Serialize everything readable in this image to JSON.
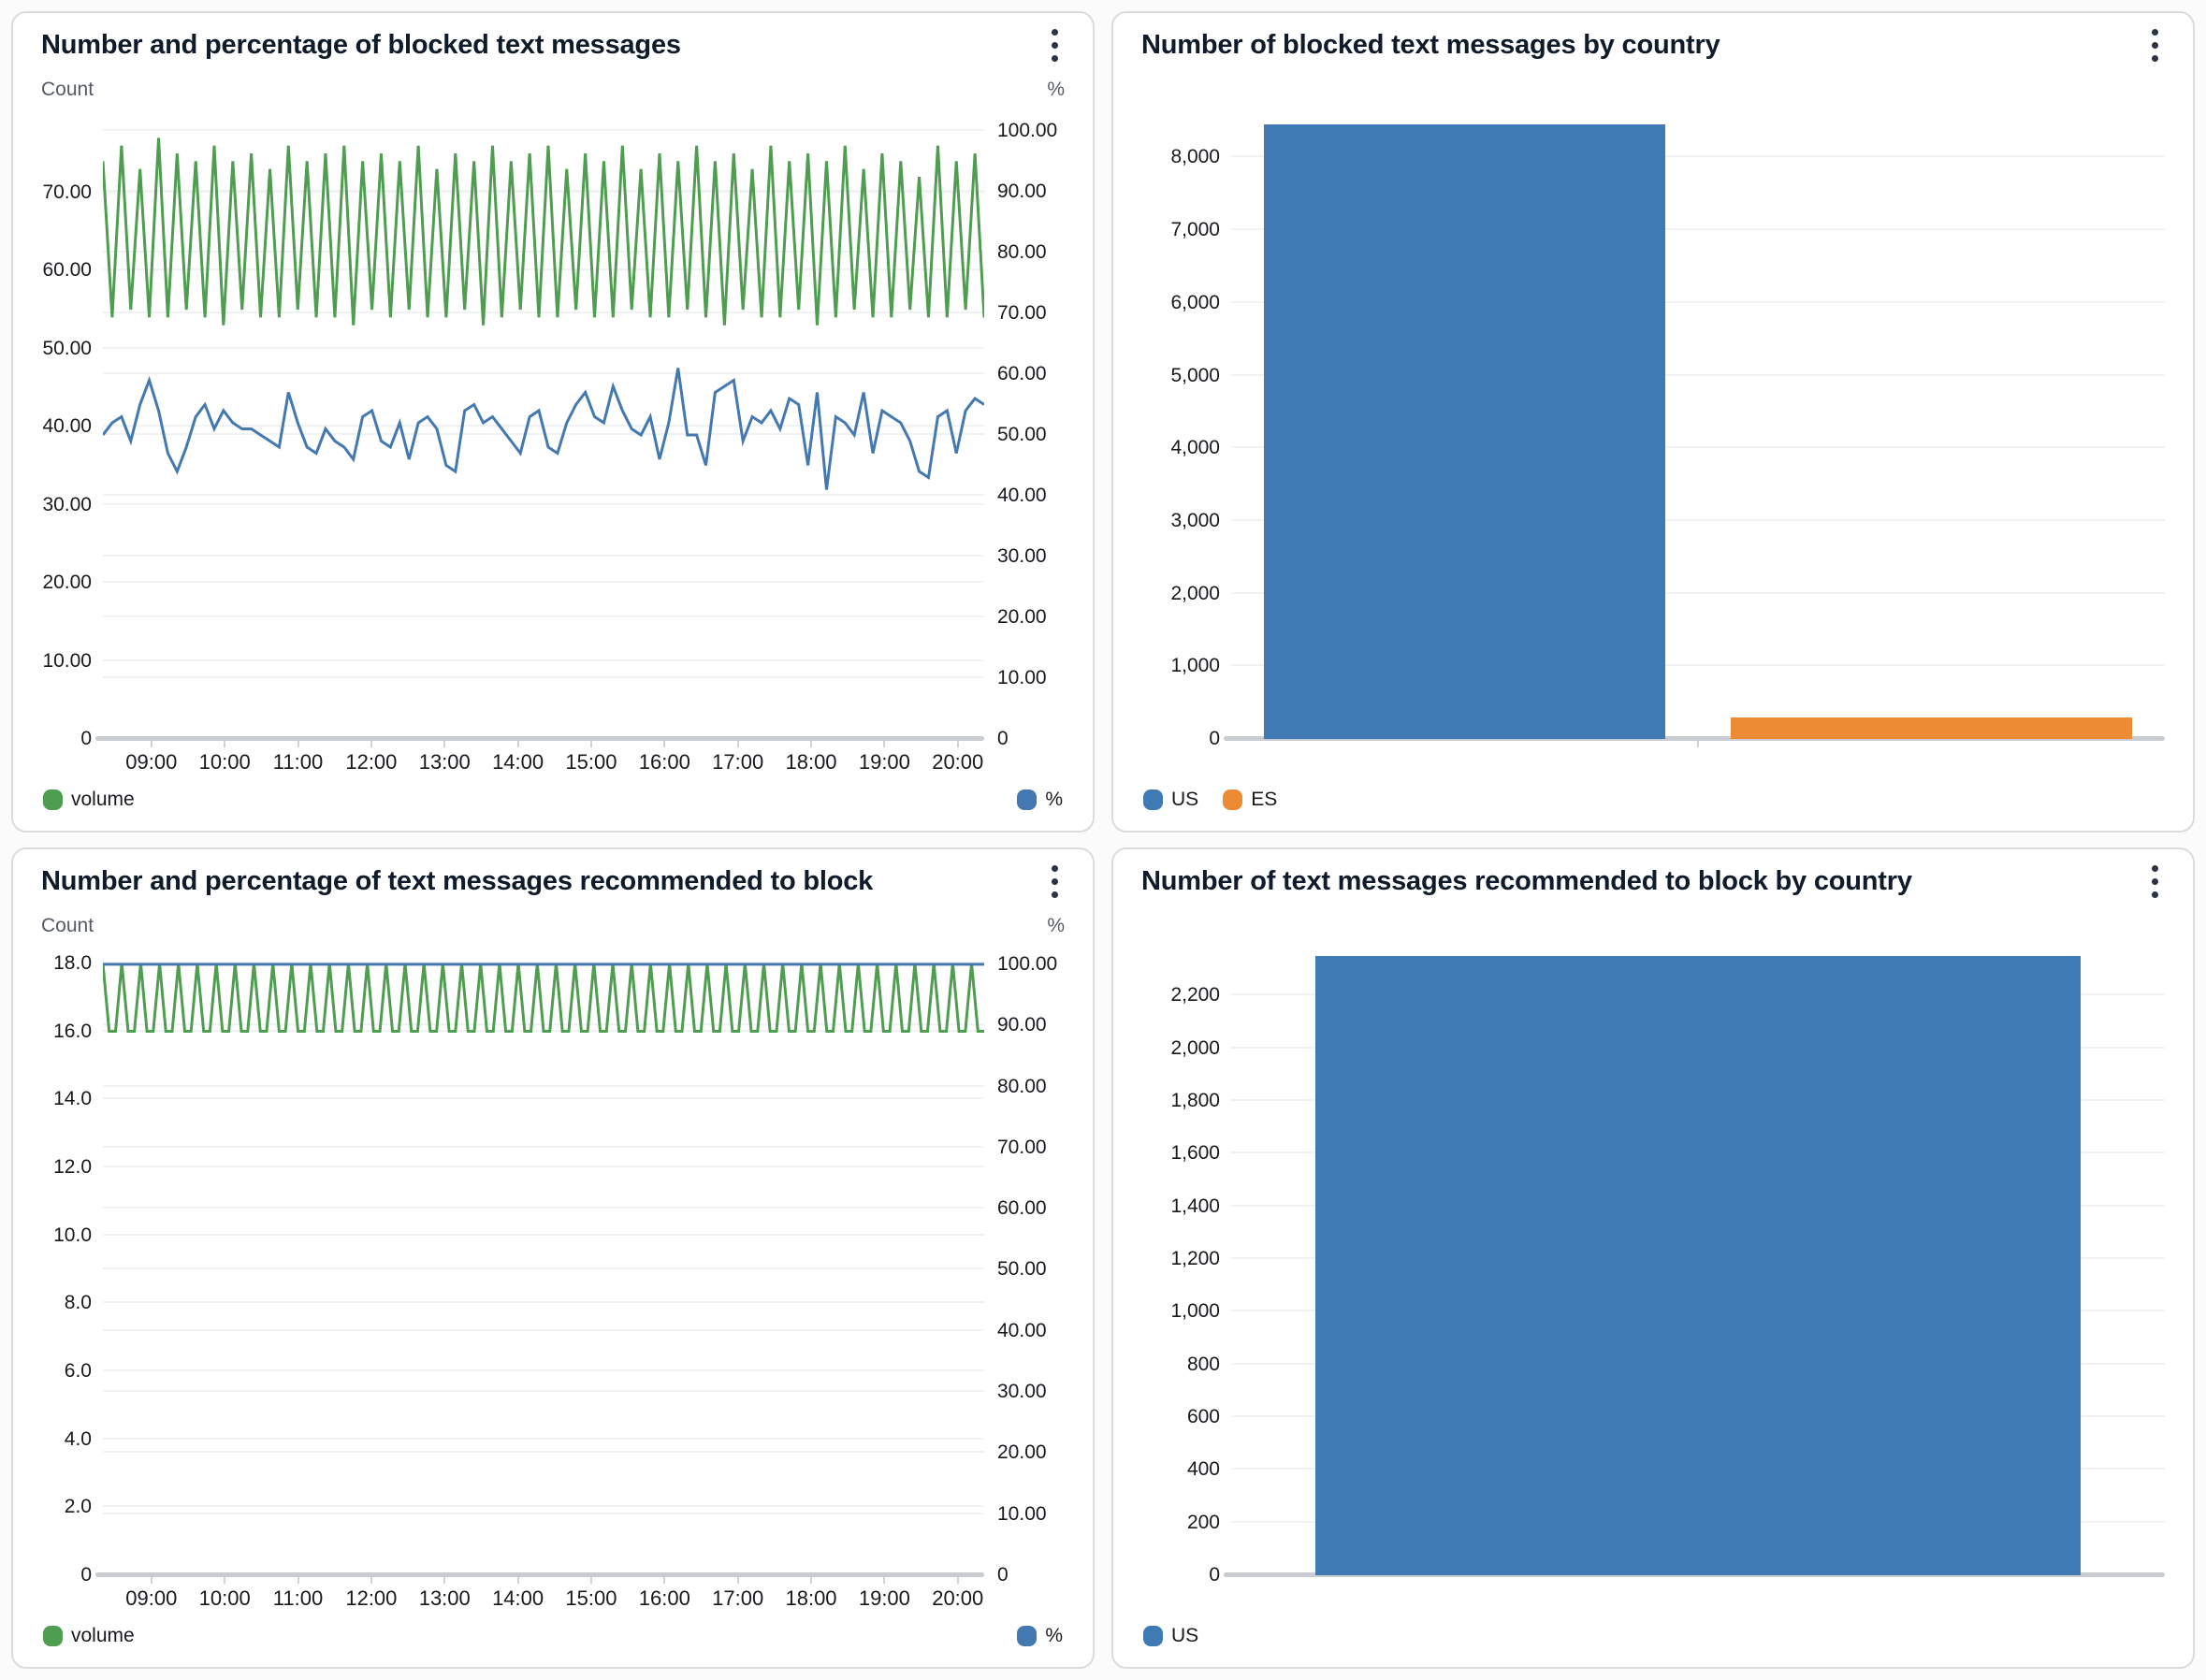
{
  "chart_data": [
    {
      "type": "line",
      "title": "Number and percentage of blocked text messages",
      "left_axis": {
        "label": "Count",
        "ylim": [
          0,
          81
        ],
        "ticks": [
          70,
          60,
          50,
          40,
          30,
          20,
          10,
          0
        ],
        "tick_labels": [
          "70.00",
          "60.00",
          "50.00",
          "40.00",
          "30.00",
          "20.00",
          "10.00",
          "0"
        ]
      },
      "right_axis": {
        "label": "%",
        "ylim": [
          0,
          104
        ],
        "ticks": [
          100,
          90,
          80,
          70,
          60,
          50,
          40,
          30,
          20,
          10,
          0
        ],
        "tick_labels": [
          "100.00",
          "90.00",
          "80.00",
          "70.00",
          "60.00",
          "50.00",
          "40.00",
          "30.00",
          "20.00",
          "10.00",
          "0"
        ]
      },
      "x_ticks": [
        "09:00",
        "10:00",
        "11:00",
        "12:00",
        "13:00",
        "14:00",
        "15:00",
        "16:00",
        "17:00",
        "18:00",
        "19:00",
        "20:00"
      ],
      "grid": true,
      "legend_position": "bottom",
      "series": [
        {
          "name": "volume",
          "axis": "left",
          "color": "#4f9d50",
          "values": [
            74,
            54,
            76,
            55,
            73,
            54,
            77,
            54,
            75,
            55,
            74,
            54,
            76,
            53,
            74,
            55,
            75,
            54,
            73,
            54,
            76,
            55,
            74,
            54,
            75,
            54,
            76,
            53,
            74,
            55,
            75,
            54,
            74,
            55,
            76,
            54,
            73,
            54,
            75,
            55,
            74,
            53,
            76,
            54,
            74,
            55,
            75,
            54,
            76,
            54,
            73,
            55,
            75,
            54,
            74,
            54,
            76,
            55,
            73,
            54,
            75,
            54,
            74,
            55,
            76,
            54,
            74,
            53,
            75,
            55,
            73,
            54,
            76,
            54,
            74,
            55,
            75,
            53,
            74,
            54,
            76,
            55,
            73,
            54,
            75,
            54,
            74,
            55,
            72,
            54,
            76,
            54,
            74,
            55,
            75,
            54
          ]
        },
        {
          "name": "%",
          "axis": "right",
          "color": "#4478b1",
          "values": [
            50,
            52,
            53,
            49,
            55,
            59,
            54,
            47,
            44,
            48,
            53,
            55,
            51,
            54,
            52,
            51,
            51,
            50,
            49,
            48,
            57,
            52,
            48,
            47,
            51,
            49,
            48,
            46,
            53,
            54,
            49,
            48,
            52,
            46,
            52,
            53,
            51,
            45,
            44,
            54,
            55,
            52,
            53,
            51,
            49,
            47,
            53,
            54,
            48,
            47,
            52,
            55,
            57,
            53,
            52,
            58,
            54,
            51,
            50,
            53,
            46,
            52,
            61,
            50,
            50,
            45,
            57,
            58,
            59,
            49,
            53,
            52,
            54,
            51,
            56,
            55,
            45,
            57,
            41,
            53,
            52,
            50,
            57,
            47,
            54,
            53,
            52,
            49,
            44,
            43,
            53,
            54,
            47,
            54,
            56,
            55
          ]
        }
      ]
    },
    {
      "type": "bar",
      "title": "Number of blocked text messages by country",
      "y_axis": {
        "ylim": [
          0,
          8700
        ],
        "ticks": [
          8000,
          7000,
          6000,
          5000,
          4000,
          3000,
          2000,
          1000,
          0
        ],
        "tick_labels": [
          "8,000",
          "7,000",
          "6,000",
          "5,000",
          "4,000",
          "3,000",
          "2,000",
          "1,000",
          "0"
        ]
      },
      "categories": [
        "US",
        "ES"
      ],
      "values": [
        8450,
        290
      ],
      "colors": [
        "#3f7ab5",
        "#ec8b33"
      ],
      "bar_width_frac": 0.86,
      "grid": true,
      "legend_position": "bottom-left"
    },
    {
      "type": "line",
      "title": "Number and percentage of text messages recommended to block",
      "left_axis": {
        "label": "Count",
        "ylim": [
          0,
          18.6
        ],
        "ticks": [
          18,
          16,
          14,
          12,
          10,
          8,
          6,
          4,
          2,
          0
        ],
        "tick_labels": [
          "18.0",
          "16.0",
          "14.0",
          "12.0",
          "10.0",
          "8.0",
          "6.0",
          "4.0",
          "2.0",
          "0"
        ]
      },
      "right_axis": {
        "label": "%",
        "ylim": [
          0,
          103.5
        ],
        "ticks": [
          100,
          90,
          80,
          70,
          60,
          50,
          40,
          30,
          20,
          10,
          0
        ],
        "tick_labels": [
          "100.00",
          "90.00",
          "80.00",
          "70.00",
          "60.00",
          "50.00",
          "40.00",
          "30.00",
          "20.00",
          "10.00",
          "0"
        ]
      },
      "x_ticks": [
        "09:00",
        "10:00",
        "11:00",
        "12:00",
        "13:00",
        "14:00",
        "15:00",
        "16:00",
        "17:00",
        "18:00",
        "19:00",
        "20:00"
      ],
      "grid": true,
      "legend_position": "bottom",
      "series": [
        {
          "name": "volume",
          "axis": "left",
          "color": "#4f9d50",
          "values": [
            18,
            16,
            16,
            18,
            16,
            16,
            18,
            16,
            16,
            18,
            16,
            16,
            18,
            16,
            16,
            18,
            16,
            16,
            18,
            16,
            16,
            18,
            16,
            16,
            18,
            16,
            16,
            18,
            16,
            16,
            18,
            16,
            16,
            18,
            16,
            16,
            18,
            16,
            16,
            18,
            16,
            16,
            18,
            16,
            16,
            18,
            16,
            16,
            18,
            16,
            16,
            18,
            16,
            16,
            18,
            16,
            16,
            18,
            16,
            16,
            18,
            16,
            16,
            18,
            16,
            16,
            18,
            16,
            16,
            18,
            16,
            16,
            18,
            16,
            16,
            18,
            16,
            16,
            18,
            16,
            16,
            18,
            16,
            16,
            18,
            16,
            16,
            18,
            16,
            16,
            18,
            16,
            16,
            18,
            16,
            16,
            18,
            16,
            16,
            18,
            16,
            16,
            18,
            16,
            16,
            18,
            16,
            16,
            18,
            16,
            16,
            18,
            16,
            16,
            18,
            16,
            16,
            18,
            16,
            16,
            18,
            16,
            16,
            18,
            16,
            16,
            18,
            16,
            16,
            18,
            16,
            16,
            18,
            16,
            16,
            18,
            16,
            16,
            18,
            16,
            16
          ]
        },
        {
          "name": "%",
          "axis": "right",
          "color": "#4478b1",
          "values": [
            100,
            100
          ]
        }
      ]
    },
    {
      "type": "bar",
      "title": "Number of text messages recommended to block by country",
      "y_axis": {
        "ylim": [
          0,
          2400
        ],
        "ticks": [
          2200,
          2000,
          1800,
          1600,
          1400,
          1200,
          1000,
          800,
          600,
          400,
          200,
          0
        ],
        "tick_labels": [
          "2,200",
          "2,000",
          "1,800",
          "1,600",
          "1,400",
          "1,200",
          "1,000",
          "800",
          "600",
          "400",
          "200",
          "0"
        ]
      },
      "categories": [
        "US"
      ],
      "values": [
        2350
      ],
      "colors": [
        "#3f7ab5"
      ],
      "bar_width_frac": 0.82,
      "grid": true,
      "legend_position": "bottom-left"
    }
  ]
}
